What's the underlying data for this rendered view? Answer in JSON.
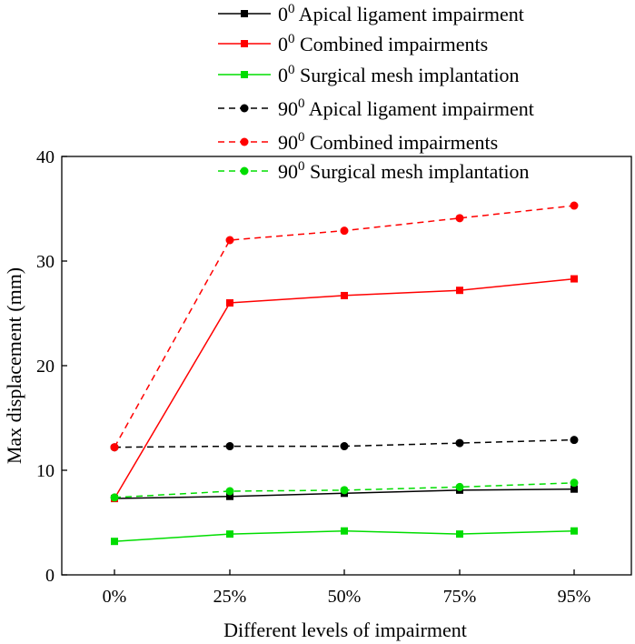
{
  "chart_data": {
    "type": "line",
    "xlabel": "Different levels of impairment",
    "ylabel": "Max displacement (mm)",
    "categories": [
      "0%",
      "25%",
      "50%",
      "75%",
      "95%"
    ],
    "ylim": [
      0,
      40
    ],
    "yticks": [
      "0",
      "10",
      "20",
      "30",
      "40"
    ],
    "series": [
      {
        "name": "Apical ligament impairment",
        "angle": "0",
        "sup": "0",
        "color": "#000000",
        "dash": "solid",
        "marker": "square",
        "values": [
          7.3,
          7.5,
          7.8,
          8.1,
          8.2
        ]
      },
      {
        "name": "Combined impairments",
        "angle": "0",
        "sup": "0",
        "color": "#ff0000",
        "dash": "solid",
        "marker": "square",
        "values": [
          7.3,
          26.0,
          26.7,
          27.2,
          28.3
        ]
      },
      {
        "name": "Surgical mesh implantation",
        "angle": "0",
        "sup": "0",
        "color": "#00dd00",
        "dash": "solid",
        "marker": "square",
        "values": [
          3.2,
          3.9,
          4.2,
          3.9,
          4.2
        ]
      },
      {
        "name": "Apical ligament impairment",
        "angle": "90",
        "sup": "0",
        "color": "#000000",
        "dash": "dashed",
        "marker": "circle",
        "values": [
          12.2,
          12.3,
          12.3,
          12.6,
          12.9
        ]
      },
      {
        "name": "Combined impairments",
        "angle": "90",
        "sup": "0",
        "color": "#ff0000",
        "dash": "dashed",
        "marker": "circle",
        "values": [
          12.2,
          32.0,
          32.9,
          34.1,
          35.3
        ]
      },
      {
        "name": "Surgical mesh implantation",
        "angle": "90",
        "sup": "0",
        "color": "#00dd00",
        "dash": "dashed",
        "marker": "circle",
        "values": [
          7.4,
          8.0,
          8.1,
          8.4,
          8.8
        ]
      }
    ]
  }
}
